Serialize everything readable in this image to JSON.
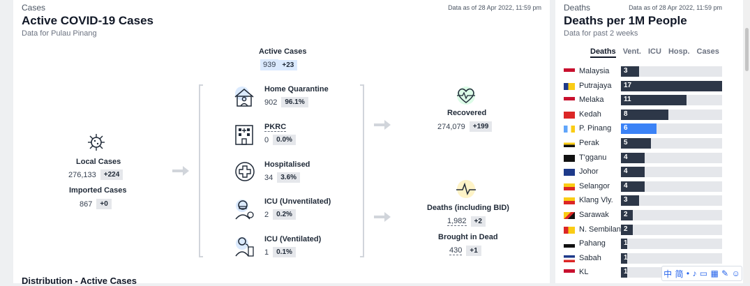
{
  "left": {
    "kicker": "Cases",
    "title": "Active COVID-19 Cases",
    "subtitle": "Data for Pulau Pinang",
    "as_of": "Data as of 28 Apr 2022, 11:59 pm",
    "active": {
      "label": "Active Cases",
      "value": "939",
      "delta": "+23"
    },
    "local": {
      "label": "Local Cases",
      "value": "276,133",
      "delta": "+224"
    },
    "imported": {
      "label": "Imported Cases",
      "value": "867",
      "delta": "+0"
    },
    "categories": [
      {
        "label": "Home Quarantine",
        "value": "902",
        "pct": "96.1%",
        "icon": "house-person-icon"
      },
      {
        "label": "PKRC",
        "value": "0",
        "pct": "0.0%",
        "icon": "building-icon"
      },
      {
        "label": "Hospitalised",
        "value": "34",
        "pct": "3.6%",
        "icon": "medical-cross-icon"
      },
      {
        "label": "ICU (Unventilated)",
        "value": "2",
        "pct": "0.2%",
        "icon": "patient-mask-icon"
      },
      {
        "label": "ICU (Ventilated)",
        "value": "1",
        "pct": "0.1%",
        "icon": "ventilator-icon"
      }
    ],
    "recovered": {
      "label": "Recovered",
      "value": "274,079",
      "delta": "+199"
    },
    "deaths": {
      "label": "Deaths (including BID)",
      "value": "1,982",
      "delta": "+2"
    },
    "bid": {
      "label": "Brought in Dead",
      "value": "430",
      "delta": "+1"
    },
    "section_next": "Distribution - Active Cases"
  },
  "right": {
    "kicker": "Deaths",
    "title": "Deaths per 1M People",
    "subtitle": "Data for past 2 weeks",
    "as_of": "Data as of 28 Apr 2022, 11:59 pm",
    "tabs": [
      "Deaths",
      "Vent.",
      "ICU",
      "Hosp.",
      "Cases"
    ],
    "active_tab": "Deaths",
    "max_value": 17,
    "highlight": "P. Pinang",
    "colors": {
      "bar": "#2d3748",
      "highlight": "#3b82f6",
      "track": "#e5e7eb"
    },
    "states": [
      {
        "name": "Malaysia",
        "value": 3
      },
      {
        "name": "Putrajaya",
        "value": 17
      },
      {
        "name": "Melaka",
        "value": 11
      },
      {
        "name": "Kedah",
        "value": 8
      },
      {
        "name": "P. Pinang",
        "value": 6
      },
      {
        "name": "Perak",
        "value": 5
      },
      {
        "name": "T'gganu",
        "value": 4
      },
      {
        "name": "Johor",
        "value": 4
      },
      {
        "name": "Selangor",
        "value": 4
      },
      {
        "name": "Klang Vly.",
        "value": 3
      },
      {
        "name": "Sarawak",
        "value": 2
      },
      {
        "name": "N. Sembilan",
        "value": 2
      },
      {
        "name": "Pahang",
        "value": 1
      },
      {
        "name": "Sabah",
        "value": 1
      },
      {
        "name": "KL",
        "value": 1
      }
    ]
  },
  "ime_toolbar": [
    "中",
    "简",
    "•",
    "♪",
    "▭",
    "▦",
    "✎",
    "☺"
  ]
}
